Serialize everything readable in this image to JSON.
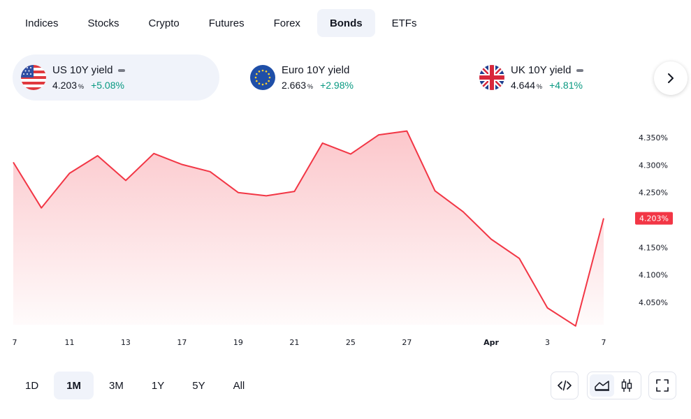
{
  "tabs": [
    {
      "label": "Indices",
      "active": false
    },
    {
      "label": "Stocks",
      "active": false
    },
    {
      "label": "Crypto",
      "active": false
    },
    {
      "label": "Futures",
      "active": false
    },
    {
      "label": "Forex",
      "active": false
    },
    {
      "label": "Bonds",
      "active": true
    },
    {
      "label": "ETFs",
      "active": false
    }
  ],
  "cards": [
    {
      "name": "US 10Y yield",
      "value": "4.203",
      "unit": "%",
      "change": "+5.08%",
      "flag": "us-flag-icon"
    },
    {
      "name": "Euro 10Y yield",
      "value": "2.663",
      "unit": "%",
      "change": "+2.98%",
      "flag": "eu-flag-icon"
    },
    {
      "name": "UK 10Y yield",
      "value": "4.644",
      "unit": "%",
      "change": "+4.81%",
      "flag": "uk-flag-icon"
    }
  ],
  "colors": {
    "line": "#f23645",
    "positive": "#089981",
    "accent_bg": "#f0f3fa"
  },
  "chart_data": {
    "type": "area",
    "x": [
      "Mar 7",
      "Mar 10",
      "Mar 11",
      "Mar 12",
      "Mar 13",
      "Mar 14",
      "Mar 17",
      "Mar 18",
      "Mar 19",
      "Mar 20",
      "Mar 21",
      "Mar 24",
      "Mar 25",
      "Mar 26",
      "Mar 27",
      "Mar 28",
      "Mar 31",
      "Apr 1",
      "Apr 2",
      "Apr 3",
      "Apr 4",
      "Apr 7"
    ],
    "values": [
      4.305,
      4.222,
      4.285,
      4.317,
      4.272,
      4.321,
      4.301,
      4.288,
      4.25,
      4.244,
      4.252,
      4.34,
      4.32,
      4.355,
      4.362,
      4.253,
      4.215,
      4.165,
      4.13,
      4.04,
      4.007,
      4.203
    ],
    "x_ticks": [
      "7",
      "11",
      "13",
      "17",
      "19",
      "21",
      "25",
      "27",
      "Apr",
      "3",
      "7"
    ],
    "x_tick_index": [
      0,
      2,
      4,
      6,
      8,
      10,
      12,
      14,
      17,
      19,
      21
    ],
    "y_ticks": [
      "4.350%",
      "4.300%",
      "4.250%",
      "4.200%",
      "4.150%",
      "4.100%",
      "4.050%"
    ],
    "y_tick_values": [
      4.35,
      4.3,
      4.25,
      4.2,
      4.15,
      4.1,
      4.05
    ],
    "ylim": [
      4.0,
      4.37
    ],
    "last_value_label": "4.203%",
    "series": [
      {
        "values_ref": "values"
      }
    ]
  },
  "ranges": [
    {
      "label": "1D",
      "active": false
    },
    {
      "label": "1M",
      "active": true
    },
    {
      "label": "3M",
      "active": false
    },
    {
      "label": "1Y",
      "active": false
    },
    {
      "label": "5Y",
      "active": false
    },
    {
      "label": "All",
      "active": false
    }
  ],
  "tools": {
    "embed": "code-icon",
    "area": "area-chart-icon",
    "candles": "candles-icon",
    "fullscreen": "fullscreen-icon",
    "next": "chevron-right-icon"
  }
}
